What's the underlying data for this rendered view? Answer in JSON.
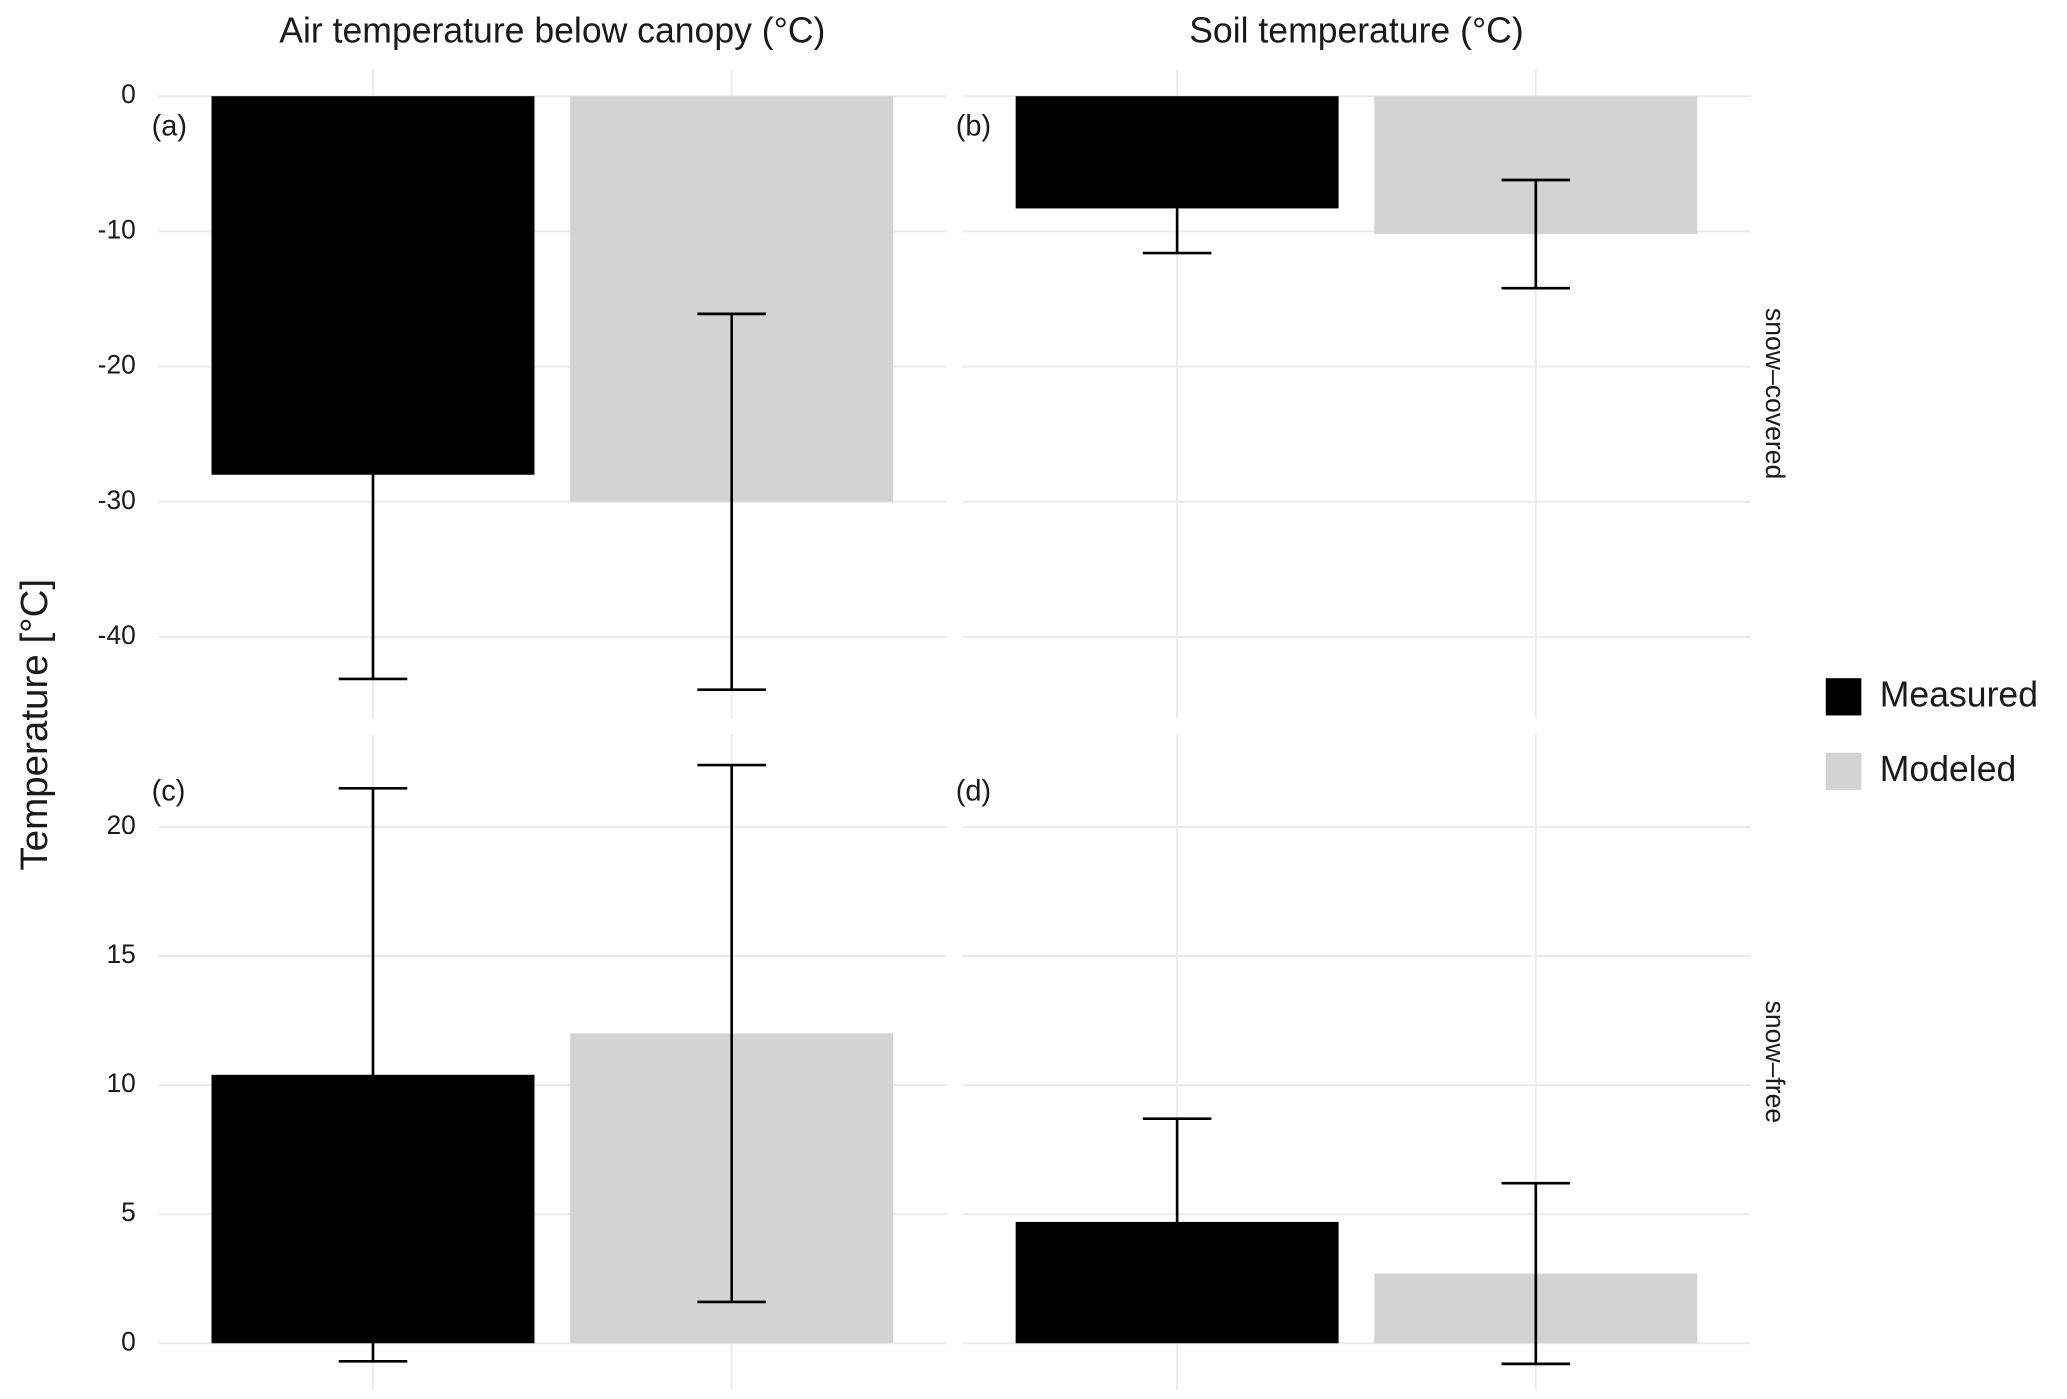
{
  "chart_data": {
    "type": "bar",
    "y_label": "Temperature [°C]",
    "columns": [
      "Air temperature below canopy (°C)",
      "Soil temperature (°C)"
    ],
    "rows": [
      {
        "label": "snow–covered",
        "ylim": [
          -46,
          2
        ],
        "yticks": [
          0,
          -10,
          -20,
          -30,
          -40
        ]
      },
      {
        "label": "snow–free",
        "ylim": [
          -1.8,
          23.6
        ],
        "yticks": [
          0,
          5,
          10,
          15,
          20
        ]
      }
    ],
    "panels": [
      "(a)",
      "(b)",
      "(c)",
      "(d)"
    ],
    "series": [
      {
        "name": "Measured",
        "color": "#000000",
        "values": [
          -28,
          -8.3,
          10.4,
          4.7
        ],
        "errors": [
          15.1,
          3.3,
          11.1,
          4
        ]
      },
      {
        "name": "Modeled",
        "color": "#d3d3d3",
        "values": [
          -30,
          -10.2,
          12,
          2.7
        ],
        "errors": [
          13.9,
          4,
          10.4,
          3.5
        ]
      }
    ],
    "grid": true,
    "legend": "right"
  }
}
